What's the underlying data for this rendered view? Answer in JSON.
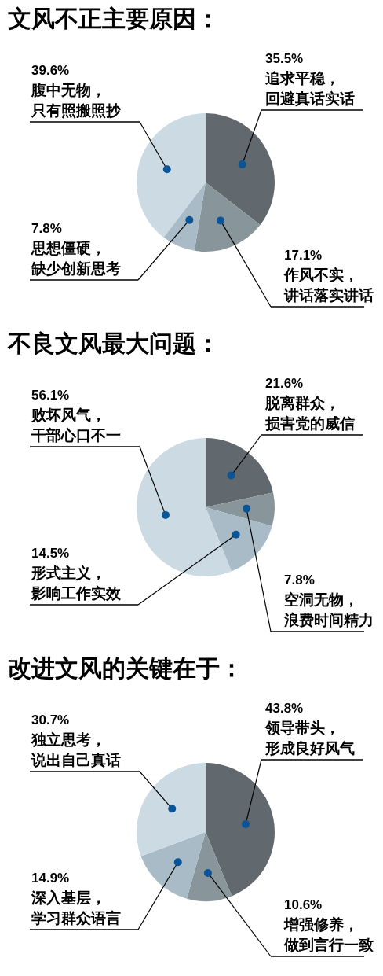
{
  "chart_data": [
    {
      "type": "pie",
      "title": "文风不正主要原因：",
      "categories": [
        "追求平稳，回避真话实话",
        "作风不实，讲话落实讲话",
        "思想僵硬，缺少创新思考",
        "腹中无物，只有照搬照抄"
      ],
      "values": [
        35.5,
        17.1,
        7.8,
        39.6
      ],
      "value_labels": [
        "35.5%",
        "17.1%",
        "7.8%",
        "39.6%"
      ],
      "colors": [
        "#61686e",
        "#88969c",
        "#a8bbc6",
        "#cbdae3"
      ]
    },
    {
      "type": "pie",
      "title": "不良文风最大问题：",
      "categories": [
        "脱离群众，损害党的威信",
        "空洞无物，浪费时间精力",
        "形式主义，影响工作实效",
        "败坏风气，干部心口不一"
      ],
      "values": [
        21.6,
        7.8,
        14.5,
        56.1
      ],
      "value_labels": [
        "21.6%",
        "7.8%",
        "14.5%",
        "56.1%"
      ],
      "colors": [
        "#61686e",
        "#88969c",
        "#a8bbc6",
        "#cbdae3"
      ]
    },
    {
      "type": "pie",
      "title": "改进文风的关键在于：",
      "categories": [
        "领导带头，形成良好风气",
        "增强修养，做到言行一致",
        "深入基层，学习群众语言",
        "独立思考，说出自己真话"
      ],
      "values": [
        43.8,
        10.6,
        14.9,
        30.7
      ],
      "value_labels": [
        "43.8%",
        "10.6%",
        "14.9%",
        "30.7%"
      ],
      "colors": [
        "#61686e",
        "#88969c",
        "#a8bbc6",
        "#cbdae3"
      ]
    }
  ]
}
